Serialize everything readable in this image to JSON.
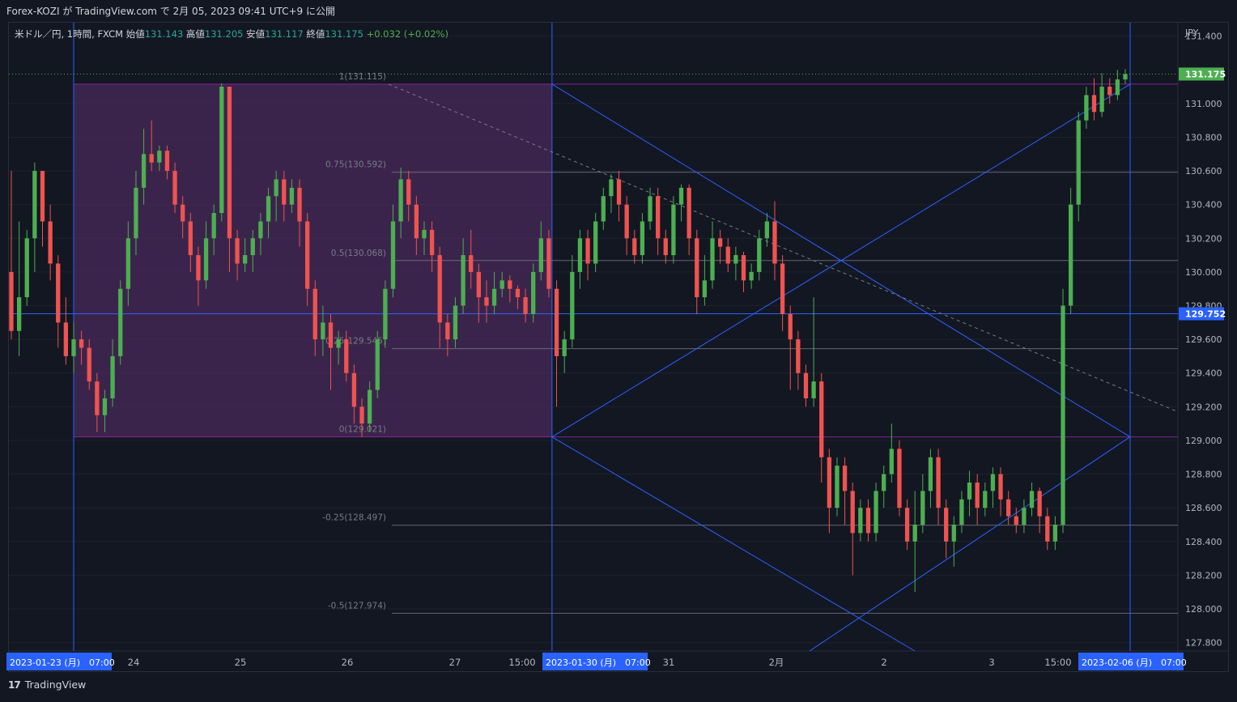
{
  "header": {
    "published": "Forex-KOZI が TradingView.com で 2月 05, 2023 09:41 UTC+9 に公開"
  },
  "legend": {
    "symbol": "米ドル／円, 1時間, FXCM",
    "open_label": "始値",
    "open": "131.143",
    "high_label": "高値",
    "high": "131.205",
    "low_label": "安値",
    "low": "131.117",
    "close_label": "終値",
    "close": "131.175",
    "change": "+0.032 (+0.02%)"
  },
  "footer": {
    "brand": "TradingView",
    "logo_glyph": "17"
  },
  "colors": {
    "background": "#131722",
    "up": "#4caf50",
    "down": "#ef5350",
    "line": "#2962ff",
    "fib_zone": "#4a2a5a",
    "price_tag": "#4caf50",
    "level_tag": "#2962ff"
  },
  "chart_data": {
    "type": "candlestick",
    "currency": "JPY",
    "ylim": [
      127.75,
      131.48
    ],
    "y_ticks": [
      "131.400",
      "131.000",
      "130.800",
      "130.600",
      "130.400",
      "130.200",
      "130.000",
      "129.800",
      "129.600",
      "129.400",
      "129.200",
      "129.000",
      "128.800",
      "128.600",
      "128.400",
      "128.200",
      "128.000",
      "127.800"
    ],
    "x_labels": [
      {
        "label": "2023-01-23 (月)　07:00",
        "highlight": true
      },
      {
        "label": "24",
        "highlight": false
      },
      {
        "label": "25",
        "highlight": false
      },
      {
        "label": "26",
        "highlight": false
      },
      {
        "label": "27",
        "highlight": false
      },
      {
        "label": "15:00",
        "highlight": false
      },
      {
        "label": "2023-01-30 (月)　07:00",
        "highlight": true
      },
      {
        "label": "31",
        "highlight": false
      },
      {
        "label": "2月",
        "highlight": false
      },
      {
        "label": "2",
        "highlight": false
      },
      {
        "label": "3",
        "highlight": false
      },
      {
        "label": "15:00",
        "highlight": false
      },
      {
        "label": "2023-02-06 (月)　07:00",
        "highlight": true
      }
    ],
    "fib_levels": [
      {
        "ratio": "1",
        "price": 131.115,
        "label": "1(131.115)"
      },
      {
        "ratio": "0.75",
        "price": 130.592,
        "label": "0.75(130.592)"
      },
      {
        "ratio": "0.5",
        "price": 130.068,
        "label": "0.5(130.068)"
      },
      {
        "ratio": "0.25",
        "price": 129.545,
        "label": "0.25(129.545)"
      },
      {
        "ratio": "0",
        "price": 129.021,
        "label": "0(129.021)"
      },
      {
        "ratio": "-0.25",
        "price": 128.497,
        "label": "-0.25(128.497)"
      },
      {
        "ratio": "-0.5",
        "price": 127.974,
        "label": "-0.5(127.974)"
      }
    ],
    "current_price": {
      "value": 131.175,
      "label": "131.175"
    },
    "horizontal_level": {
      "value": 129.752,
      "label": "129.752"
    },
    "price_path": [
      [
        130.0,
        129.65,
        130.6,
        129.6
      ],
      [
        129.65,
        129.85,
        130.3,
        129.5
      ],
      [
        129.85,
        130.2,
        130.25,
        129.8
      ],
      [
        130.2,
        130.6,
        130.65,
        130.0
      ],
      [
        130.6,
        130.3,
        130.6,
        130.15
      ],
      [
        130.3,
        130.05,
        130.4,
        129.95
      ],
      [
        130.05,
        129.7,
        130.1,
        129.55
      ],
      [
        129.7,
        129.5,
        129.85,
        129.45
      ],
      [
        129.5,
        129.6,
        129.7,
        129.4
      ],
      [
        129.6,
        129.55,
        129.65,
        129.45
      ],
      [
        129.55,
        129.35,
        129.6,
        129.3
      ],
      [
        129.35,
        129.15,
        129.4,
        129.05
      ],
      [
        129.15,
        129.25,
        129.3,
        129.05
      ],
      [
        129.25,
        129.5,
        129.6,
        129.2
      ],
      [
        129.5,
        129.9,
        129.95,
        129.45
      ],
      [
        129.9,
        130.2,
        130.3,
        129.8
      ],
      [
        130.2,
        130.5,
        130.6,
        130.1
      ],
      [
        130.5,
        130.7,
        130.85,
        130.4
      ],
      [
        130.7,
        130.65,
        130.9,
        130.6
      ],
      [
        130.65,
        130.72,
        130.75,
        130.6
      ],
      [
        130.72,
        130.6,
        130.75,
        130.55
      ],
      [
        130.6,
        130.4,
        130.65,
        130.35
      ],
      [
        130.4,
        130.3,
        130.45,
        130.2
      ],
      [
        130.3,
        130.1,
        130.35,
        130.0
      ],
      [
        130.1,
        129.95,
        130.15,
        129.8
      ],
      [
        129.95,
        130.2,
        130.3,
        129.9
      ],
      [
        130.2,
        130.35,
        130.4,
        130.1
      ],
      [
        130.35,
        131.1,
        131.12,
        130.3
      ],
      [
        131.1,
        130.2,
        131.1,
        130.0
      ],
      [
        130.2,
        130.05,
        130.25,
        129.95
      ],
      [
        130.05,
        130.1,
        130.2,
        130.0
      ],
      [
        130.1,
        130.2,
        130.25,
        130.0
      ],
      [
        130.2,
        130.3,
        130.35,
        130.1
      ],
      [
        130.3,
        130.45,
        130.5,
        130.2
      ],
      [
        130.45,
        130.55,
        130.6,
        130.3
      ],
      [
        130.55,
        130.4,
        130.6,
        130.3
      ],
      [
        130.4,
        130.5,
        130.55,
        130.35
      ],
      [
        130.5,
        130.3,
        130.55,
        130.15
      ],
      [
        130.3,
        129.9,
        130.35,
        129.8
      ],
      [
        129.9,
        129.6,
        129.95,
        129.5
      ],
      [
        129.6,
        129.7,
        129.8,
        129.5
      ],
      [
        129.7,
        129.55,
        129.75,
        129.3
      ],
      [
        129.55,
        129.6,
        129.65,
        129.45
      ],
      [
        129.6,
        129.4,
        129.65,
        129.35
      ],
      [
        129.4,
        129.2,
        129.45,
        129.1
      ],
      [
        129.2,
        129.1,
        129.25,
        129.02
      ],
      [
        129.1,
        129.3,
        129.35,
        129.05
      ],
      [
        129.3,
        129.6,
        129.65,
        129.25
      ],
      [
        129.6,
        129.9,
        129.95,
        129.55
      ],
      [
        129.9,
        130.3,
        130.4,
        129.85
      ],
      [
        130.3,
        130.55,
        130.62,
        130.2
      ],
      [
        130.55,
        130.4,
        130.6,
        130.3
      ],
      [
        130.4,
        130.2,
        130.45,
        130.1
      ],
      [
        130.2,
        130.25,
        130.3,
        130.1
      ],
      [
        130.25,
        130.1,
        130.3,
        130.0
      ],
      [
        130.1,
        129.7,
        130.15,
        129.55
      ],
      [
        129.7,
        129.6,
        129.75,
        129.5
      ],
      [
        129.6,
        129.8,
        129.85,
        129.55
      ],
      [
        129.8,
        130.1,
        130.2,
        129.75
      ],
      [
        130.1,
        130.0,
        130.25,
        129.9
      ],
      [
        130.0,
        129.85,
        130.05,
        129.7
      ],
      [
        129.85,
        129.8,
        129.95,
        129.7
      ],
      [
        129.8,
        129.9,
        130.0,
        129.75
      ],
      [
        129.9,
        129.95,
        130.0,
        129.85
      ],
      [
        129.95,
        129.9,
        129.98,
        129.82
      ],
      [
        129.9,
        129.85,
        129.92,
        129.78
      ],
      [
        129.85,
        129.75,
        129.9,
        129.7
      ],
      [
        129.75,
        130.0,
        130.05,
        129.7
      ],
      [
        130.0,
        130.2,
        130.3,
        129.95
      ],
      [
        130.2,
        129.9,
        130.25,
        129.85
      ],
      [
        129.9,
        129.5,
        129.95,
        129.2
      ],
      [
        129.5,
        129.6,
        129.65,
        129.4
      ],
      [
        129.6,
        130.0,
        130.1,
        129.55
      ],
      [
        130.0,
        130.2,
        130.25,
        129.9
      ],
      [
        130.2,
        130.05,
        130.25,
        129.95
      ],
      [
        130.05,
        130.3,
        130.35,
        130.0
      ],
      [
        130.3,
        130.45,
        130.5,
        130.25
      ],
      [
        130.45,
        130.55,
        130.58,
        130.35
      ],
      [
        130.55,
        130.4,
        130.6,
        130.3
      ],
      [
        130.4,
        130.2,
        130.45,
        130.1
      ],
      [
        130.2,
        130.1,
        130.25,
        130.05
      ],
      [
        130.1,
        130.3,
        130.35,
        130.05
      ],
      [
        130.3,
        130.45,
        130.5,
        130.25
      ],
      [
        130.45,
        130.2,
        130.5,
        130.1
      ],
      [
        130.2,
        130.1,
        130.25,
        130.05
      ],
      [
        130.1,
        130.4,
        130.45,
        130.05
      ],
      [
        130.4,
        130.5,
        130.52,
        130.3
      ],
      [
        130.5,
        130.2,
        130.52,
        130.1
      ],
      [
        130.2,
        129.85,
        130.25,
        129.75
      ],
      [
        129.85,
        129.95,
        130.1,
        129.8
      ],
      [
        129.95,
        130.2,
        130.3,
        129.9
      ],
      [
        130.2,
        130.15,
        130.25,
        130.05
      ],
      [
        130.15,
        130.05,
        130.2,
        130.0
      ],
      [
        130.05,
        130.1,
        130.15,
        129.95
      ],
      [
        130.1,
        129.95,
        130.12,
        129.88
      ],
      [
        129.95,
        130.0,
        130.05,
        129.9
      ],
      [
        130.0,
        130.2,
        130.25,
        129.95
      ],
      [
        130.2,
        130.3,
        130.35,
        130.15
      ],
      [
        130.3,
        130.05,
        130.42,
        129.95
      ],
      [
        130.05,
        129.75,
        130.1,
        129.65
      ],
      [
        129.75,
        129.6,
        129.8,
        129.3
      ],
      [
        129.6,
        129.4,
        129.65,
        129.3
      ],
      [
        129.4,
        129.25,
        129.45,
        129.2
      ],
      [
        129.25,
        129.35,
        129.85,
        129.2
      ],
      [
        129.35,
        128.9,
        129.4,
        128.75
      ],
      [
        128.9,
        128.6,
        128.95,
        128.45
      ],
      [
        128.6,
        128.85,
        128.9,
        128.55
      ],
      [
        128.85,
        128.7,
        128.9,
        128.5
      ],
      [
        128.7,
        128.45,
        128.75,
        128.2
      ],
      [
        128.45,
        128.6,
        128.65,
        128.4
      ],
      [
        128.6,
        128.45,
        128.65,
        128.4
      ],
      [
        128.45,
        128.7,
        128.75,
        128.4
      ],
      [
        128.7,
        128.8,
        128.85,
        128.6
      ],
      [
        128.8,
        128.95,
        129.1,
        128.75
      ],
      [
        128.95,
        128.6,
        129.0,
        128.55
      ],
      [
        128.6,
        128.4,
        128.65,
        128.35
      ],
      [
        128.4,
        128.5,
        128.7,
        128.1
      ],
      [
        128.5,
        128.7,
        128.8,
        128.45
      ],
      [
        128.7,
        128.9,
        128.95,
        128.6
      ],
      [
        128.9,
        128.6,
        128.95,
        128.5
      ],
      [
        128.6,
        128.4,
        128.65,
        128.3
      ],
      [
        128.4,
        128.5,
        128.55,
        128.25
      ],
      [
        128.5,
        128.65,
        128.7,
        128.45
      ],
      [
        128.65,
        128.75,
        128.82,
        128.55
      ],
      [
        128.75,
        128.6,
        128.8,
        128.5
      ],
      [
        128.6,
        128.7,
        128.75,
        128.55
      ],
      [
        128.7,
        128.8,
        128.84,
        128.6
      ],
      [
        128.8,
        128.65,
        128.84,
        128.55
      ],
      [
        128.65,
        128.55,
        128.7,
        128.5
      ],
      [
        128.55,
        128.5,
        128.6,
        128.45
      ],
      [
        128.5,
        128.6,
        128.65,
        128.45
      ],
      [
        128.6,
        128.7,
        128.75,
        128.55
      ],
      [
        128.7,
        128.55,
        128.72,
        128.45
      ],
      [
        128.55,
        128.4,
        128.6,
        128.35
      ],
      [
        128.4,
        128.5,
        128.55,
        128.35
      ],
      [
        128.5,
        129.8,
        129.9,
        128.45
      ],
      [
        129.8,
        130.4,
        130.5,
        129.75
      ],
      [
        130.4,
        130.9,
        130.95,
        130.3
      ],
      [
        130.9,
        131.05,
        131.1,
        130.85
      ],
      [
        131.05,
        130.95,
        131.15,
        130.9
      ],
      [
        130.95,
        131.1,
        131.18,
        130.92
      ],
      [
        131.1,
        131.05,
        131.15,
        131.0
      ],
      [
        131.05,
        131.143,
        131.2,
        131.02
      ],
      [
        131.143,
        131.175,
        131.205,
        131.117
      ]
    ]
  }
}
